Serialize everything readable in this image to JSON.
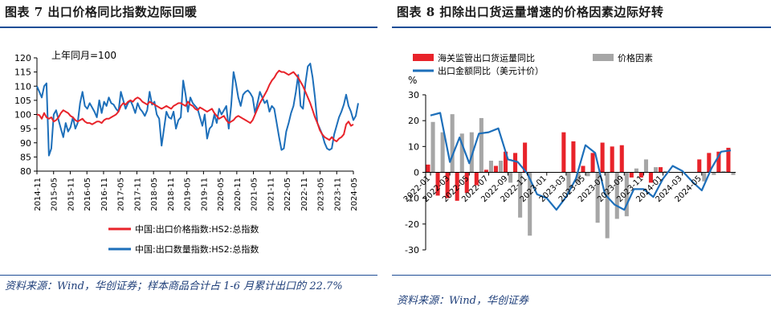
{
  "colors": {
    "red": "#e8232a",
    "blue": "#1d6fba",
    "gray": "#a6a6a6",
    "navy": "#1f4e96"
  },
  "left": {
    "title": "图表 7   出口价格同比指数边际回暖",
    "source": "资料来源：Wind，华创证券；样本商品合计占 1-6 月累计出口的 22.7%"
  },
  "right": {
    "title": "图表 8   扣除出口货运量增速的价格因素边际好转",
    "source": "资料来源：Wind，华创证券"
  },
  "chart_data": [
    {
      "type": "line",
      "annotation": "上年同月=100",
      "ylim": [
        80,
        120
      ],
      "yticks": [
        80,
        85,
        90,
        95,
        100,
        105,
        110,
        115,
        120
      ],
      "xticks": [
        "2014-11",
        "2015-05",
        "2015-11",
        "2016-05",
        "2016-11",
        "2017-05",
        "2017-11",
        "2018-05",
        "2018-11",
        "2019-05",
        "2019-11",
        "2020-05",
        "2020-11",
        "2021-05",
        "2021-11",
        "2022-05",
        "2022-11",
        "2023-05",
        "2023-11",
        "2024-05"
      ],
      "legend": "bottom",
      "series": [
        {
          "name": "中国:出口价格指数:HS2:总指数",
          "color": "#e8232a",
          "values": [
            100.0,
            99.8,
            98.5,
            100.5,
            99.0,
            98.5,
            99.0,
            97.5,
            98.0,
            99.0,
            100.5,
            101.5,
            101.0,
            100.5,
            99.5,
            99.0,
            98.0,
            97.5,
            98.0,
            98.5,
            97.5,
            97.0,
            97.0,
            96.5,
            97.0,
            97.5,
            97.5,
            97.0,
            98.0,
            98.5,
            98.5,
            99.0,
            99.5,
            100.0,
            101.0,
            103.0,
            104.0,
            103.5,
            104.5,
            105.0,
            104.5,
            105.5,
            106.0,
            105.5,
            104.5,
            104.0,
            103.5,
            104.5,
            104.0,
            103.5,
            103.0,
            102.5,
            102.0,
            102.5,
            103.0,
            102.5,
            102.0,
            103.0,
            103.5,
            104.0,
            104.0,
            103.5,
            103.0,
            104.5,
            103.5,
            103.0,
            102.0,
            101.5,
            102.5,
            102.0,
            101.5,
            101.0,
            101.5,
            102.0,
            100.5,
            99.5,
            98.5,
            99.0,
            99.5,
            98.0,
            97.0,
            97.5,
            98.0,
            99.0,
            99.5,
            99.0,
            98.5,
            98.0,
            97.5,
            97.0,
            98.0,
            100.0,
            102.0,
            104.0,
            105.5,
            107.0,
            108.5,
            110.5,
            112.0,
            113.0,
            114.5,
            115.5,
            115.0,
            115.0,
            114.5,
            114.0,
            114.5,
            115.0,
            114.0,
            113.0,
            111.5,
            110.0,
            108.0,
            106.0,
            104.0,
            101.5,
            99.0,
            97.0,
            94.5,
            93.0,
            92.0,
            91.5,
            91.0,
            92.0,
            91.0,
            90.5,
            91.5,
            92.0,
            93.0,
            96.5,
            97.5,
            96.0,
            96.5
          ]
        },
        {
          "name": "中国:出口数量指数:HS2:总指数",
          "color": "#1d6fba",
          "values": [
            110.0,
            108.0,
            106.0,
            110.0,
            111.0,
            85.5,
            88.0,
            100.0,
            101.5,
            98.0,
            95.0,
            92.0,
            97.0,
            94.0,
            95.5,
            99.0,
            95.0,
            97.0,
            104.0,
            108.0,
            103.0,
            102.0,
            104.0,
            102.5,
            101.0,
            99.0,
            105.0,
            100.5,
            104.5,
            103.0,
            106.0,
            104.0,
            103.5,
            102.0,
            101.0,
            108.0,
            105.0,
            102.0,
            104.0,
            105.0,
            103.0,
            100.5,
            104.0,
            102.0,
            101.0,
            99.5,
            101.5,
            108.0,
            103.5,
            104.5,
            100.0,
            98.5,
            89.0,
            95.0,
            101.0,
            99.0,
            98.5,
            101.0,
            95.0,
            98.0,
            99.0,
            112.0,
            107.0,
            101.0,
            106.0,
            104.0,
            103.0,
            102.0,
            99.0,
            96.0,
            100.0,
            91.5,
            95.0,
            96.0,
            100.0,
            97.0,
            102.0,
            100.0,
            101.5,
            103.0,
            95.0,
            103.0,
            115.0,
            111.0,
            106.0,
            103.0,
            107.0,
            108.0,
            108.5,
            107.5,
            106.0,
            100.5,
            104.0,
            108.0,
            106.0,
            104.0,
            105.0,
            101.0,
            103.0,
            102.0,
            97.0,
            92.0,
            87.5,
            88.0,
            94.0,
            97.0,
            100.5,
            103.0,
            108.0,
            114.0,
            103.0,
            102.0,
            111.0,
            117.0,
            118.0,
            113.0,
            106.0,
            97.0,
            95.0,
            93.0,
            90.0,
            88.0,
            87.5,
            88.0,
            93.0,
            96.0,
            99.0,
            101.0,
            103.5,
            107.0,
            103.0,
            101.0,
            98.0,
            99.5,
            104.0
          ]
        }
      ]
    },
    {
      "type": "bar",
      "unit": "%",
      "ylim": [
        -30,
        30
      ],
      "yticks": [
        30,
        20,
        10,
        0,
        -10,
        -20,
        -30
      ],
      "xticks": [
        "2022-01",
        "2022-03",
        "2022-05",
        "2022-07",
        "2022-09",
        "2022-11",
        "2023-01",
        "2023-03",
        "2023-05",
        "2023-07",
        "2023-09",
        "2023-11",
        "2024-01",
        "2024-03",
        "2024-05"
      ],
      "legend": "top",
      "series": [
        {
          "name": "海关监管出口货运量同比",
          "kind": "bar",
          "color": "#e8232a",
          "values": [
            3.0,
            -9.0,
            -10.0,
            -11.0,
            -8.0,
            -5.0,
            1.0,
            2.5,
            8.0,
            7.5,
            11.5,
            null,
            null,
            null,
            15.5,
            12.0,
            2.5,
            7.5,
            11.5,
            10.0,
            10.5,
            -2.0,
            -2.0,
            -4.0,
            2.0,
            null,
            null,
            null,
            5.0,
            7.5,
            8.0,
            9.5
          ]
        },
        {
          "name": "价格因素",
          "kind": "bar",
          "color": "#a6a6a6",
          "values": [
            19.5,
            15.5,
            22.5,
            15.0,
            15.5,
            21.0,
            4.5,
            4.5,
            -4.0,
            -17.5,
            -24.5,
            null,
            null,
            null,
            -8.5,
            -4.0,
            -1.5,
            -19.5,
            -25.5,
            -18.0,
            -17.0,
            1.5,
            5.0,
            2.0,
            0.5,
            null,
            null,
            null,
            -3.5,
            -1.0,
            0.5,
            -1.0
          ]
        },
        {
          "name": "出口金额同比（美元计价）",
          "kind": "line",
          "color": "#1d6fba",
          "values": [
            22.0,
            23.0,
            4.0,
            13.5,
            3.5,
            15.0,
            15.5,
            17.0,
            5.0,
            4.0,
            -0.5,
            -8.5,
            -10.0,
            -14.5,
            -9.5,
            -2.5,
            10.5,
            7.5,
            -8.5,
            -12.5,
            -14.5,
            -6.5,
            -6.5,
            -9.5,
            -2.5,
            2.5,
            0.5,
            -3.5,
            -7.0,
            1.5,
            8.0,
            8.5
          ]
        }
      ]
    }
  ]
}
